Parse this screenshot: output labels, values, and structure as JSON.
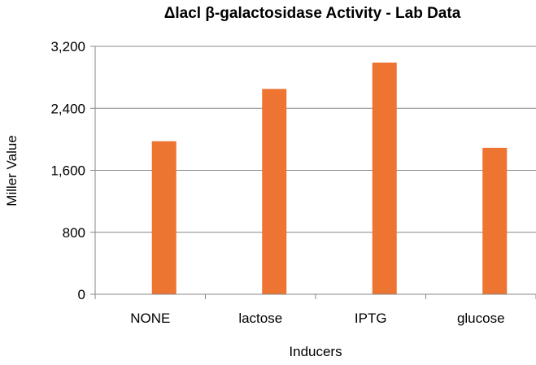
{
  "chart_data": {
    "type": "bar",
    "title": "Δlacl β-galactosidase Activity - Lab Data",
    "xlabel": "Inducers",
    "ylabel": "Miller Value",
    "categories": [
      "NONE",
      "lactose",
      "IPTG",
      "glucose"
    ],
    "values": [
      1975,
      2650,
      2990,
      1890
    ],
    "ylim": [
      0,
      3200
    ],
    "yticks": [
      0,
      800,
      1600,
      2400,
      3200
    ],
    "ytick_labels": [
      "0",
      "800",
      "1,600",
      "2,400",
      "3,200"
    ],
    "grid": true,
    "legend": "none",
    "colors": {
      "bar": "#ED7431",
      "gridline": "#878787",
      "axis": "#878787"
    }
  }
}
